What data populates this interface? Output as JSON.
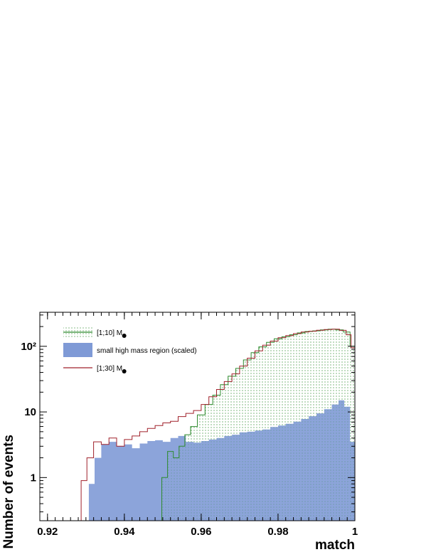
{
  "chart_data": {
    "type": "histogram",
    "title": "",
    "xlabel": "match",
    "ylabel": "Number of events",
    "xlim": [
      0.918,
      1.0
    ],
    "ylim": [
      0.22,
      330
    ],
    "yscale": "log",
    "x_ticks": [
      0.92,
      0.94,
      0.96,
      0.98,
      1
    ],
    "x_tick_labels": [
      "0.92",
      "0.94",
      "0.96",
      "0.98",
      "1"
    ],
    "y_ticks": [
      1,
      10,
      100
    ],
    "y_tick_labels": [
      "1",
      "10",
      "10²"
    ],
    "legend_position": "top-left",
    "series": [
      {
        "name": "[1;10] M",
        "style": "green dotted fill with green outline",
        "color": "#2e8b2e",
        "points": [
          [
            0.9505,
            1.0
          ],
          [
            0.952,
            2.5
          ],
          [
            0.9535,
            2.0
          ],
          [
            0.955,
            3.0
          ],
          [
            0.9565,
            4.5
          ],
          [
            0.958,
            6
          ],
          [
            0.96,
            9
          ],
          [
            0.962,
            13
          ],
          [
            0.964,
            18
          ],
          [
            0.966,
            26
          ],
          [
            0.968,
            35
          ],
          [
            0.97,
            46
          ],
          [
            0.972,
            62
          ],
          [
            0.974,
            80
          ],
          [
            0.976,
            98
          ],
          [
            0.978,
            115
          ],
          [
            0.98,
            130
          ],
          [
            0.982,
            140
          ],
          [
            0.984,
            150
          ],
          [
            0.986,
            160
          ],
          [
            0.988,
            168
          ],
          [
            0.99,
            172
          ],
          [
            0.992,
            178
          ],
          [
            0.994,
            182
          ],
          [
            0.996,
            178
          ],
          [
            0.998,
            165
          ],
          [
            0.9995,
            100
          ]
        ]
      },
      {
        "name": "small high mass region (scaled)",
        "style": "solid blue fill",
        "color": "#7f9ad6",
        "points": [
          [
            0.9315,
            0.8
          ],
          [
            0.933,
            2.0
          ],
          [
            0.935,
            3.2
          ],
          [
            0.937,
            3.5
          ],
          [
            0.939,
            3.0
          ],
          [
            0.941,
            3.2
          ],
          [
            0.943,
            2.8
          ],
          [
            0.945,
            3.3
          ],
          [
            0.947,
            3.6
          ],
          [
            0.949,
            3.7
          ],
          [
            0.951,
            3.5
          ],
          [
            0.953,
            4.0
          ],
          [
            0.955,
            4.3
          ],
          [
            0.957,
            3.5
          ],
          [
            0.959,
            3.4
          ],
          [
            0.961,
            3.6
          ],
          [
            0.963,
            3.8
          ],
          [
            0.965,
            4.0
          ],
          [
            0.967,
            4.3
          ],
          [
            0.969,
            4.5
          ],
          [
            0.971,
            4.9
          ],
          [
            0.973,
            5.0
          ],
          [
            0.975,
            5.2
          ],
          [
            0.977,
            5.4
          ],
          [
            0.979,
            5.9
          ],
          [
            0.981,
            6.2
          ],
          [
            0.983,
            6.6
          ],
          [
            0.985,
            7.1
          ],
          [
            0.987,
            7.8
          ],
          [
            0.989,
            8.6
          ],
          [
            0.991,
            9.5
          ],
          [
            0.993,
            11
          ],
          [
            0.995,
            13
          ],
          [
            0.9965,
            15
          ],
          [
            0.998,
            12
          ],
          [
            0.9995,
            3.5
          ]
        ]
      },
      {
        "name": "[1;30] M",
        "style": "dark red outline",
        "color": "#a0202a",
        "points": [
          [
            0.9295,
            0.9
          ],
          [
            0.931,
            2.0
          ],
          [
            0.933,
            3.5
          ],
          [
            0.935,
            3.2
          ],
          [
            0.937,
            4.0
          ],
          [
            0.939,
            3.0
          ],
          [
            0.941,
            3.8
          ],
          [
            0.943,
            4.3
          ],
          [
            0.945,
            5.0
          ],
          [
            0.947,
            5.6
          ],
          [
            0.949,
            6.2
          ],
          [
            0.951,
            6.8
          ],
          [
            0.953,
            7.2
          ],
          [
            0.955,
            8.5
          ],
          [
            0.957,
            9.5
          ],
          [
            0.959,
            10.5
          ],
          [
            0.961,
            13
          ],
          [
            0.963,
            17
          ],
          [
            0.965,
            22
          ],
          [
            0.967,
            29
          ],
          [
            0.969,
            38
          ],
          [
            0.971,
            50
          ],
          [
            0.973,
            66
          ],
          [
            0.975,
            85
          ],
          [
            0.977,
            104
          ],
          [
            0.979,
            120
          ],
          [
            0.981,
            135
          ],
          [
            0.983,
            146
          ],
          [
            0.985,
            156
          ],
          [
            0.987,
            165
          ],
          [
            0.989,
            170
          ],
          [
            0.991,
            176
          ],
          [
            0.993,
            180
          ],
          [
            0.995,
            182
          ],
          [
            0.997,
            175
          ],
          [
            0.9985,
            150
          ],
          [
            0.9995,
            95
          ]
        ]
      }
    ]
  }
}
